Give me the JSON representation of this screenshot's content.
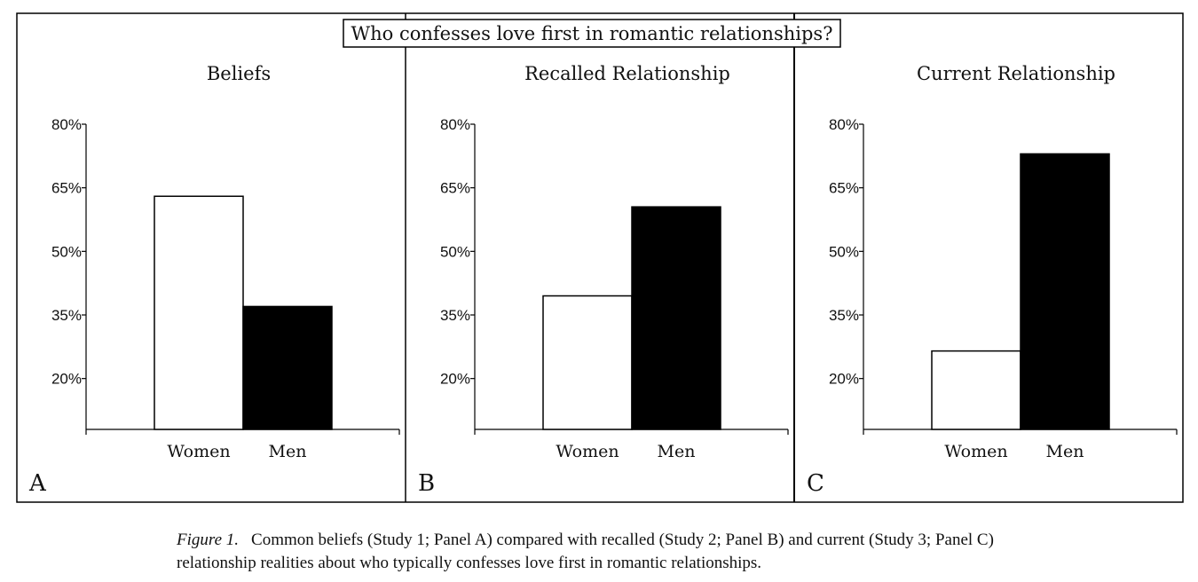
{
  "figure": {
    "super_title": "Who confesses love first in romantic relationships?",
    "caption_label": "Figure 1.",
    "caption_text": "Common beliefs (Study 1; Panel A) compared with recalled (Study 2; Panel B) and current (Study 3; Panel C) relationship realities about who typically confesses love first in romantic relationships."
  },
  "colors": {
    "women": "#ffffff",
    "men": "#000000",
    "frame": "#000000"
  },
  "chart_data": [
    {
      "type": "bar",
      "panel": "A",
      "title": "Beliefs",
      "categories": [
        "Women",
        "Men"
      ],
      "values": [
        63,
        37
      ],
      "yticks": [
        "80%",
        "65%",
        "50%",
        "35%",
        "20%"
      ],
      "ytick_values": [
        80,
        65,
        50,
        35,
        20
      ],
      "ylim": [
        8,
        80
      ],
      "legend": "none"
    },
    {
      "type": "bar",
      "panel": "B",
      "title": "Recalled Relationship",
      "categories": [
        "Women",
        "Men"
      ],
      "values": [
        39.5,
        60.5
      ],
      "yticks": [
        "80%",
        "65%",
        "50%",
        "35%",
        "20%"
      ],
      "ytick_values": [
        80,
        65,
        50,
        35,
        20
      ],
      "ylim": [
        8,
        80
      ],
      "legend": "none"
    },
    {
      "type": "bar",
      "panel": "C",
      "title": "Current Relationship",
      "categories": [
        "Women",
        "Men"
      ],
      "values": [
        26.5,
        73
      ],
      "yticks": [
        "80%",
        "65%",
        "50%",
        "35%",
        "20%"
      ],
      "ytick_values": [
        80,
        65,
        50,
        35,
        20
      ],
      "ylim": [
        8,
        80
      ],
      "legend": "none"
    }
  ]
}
